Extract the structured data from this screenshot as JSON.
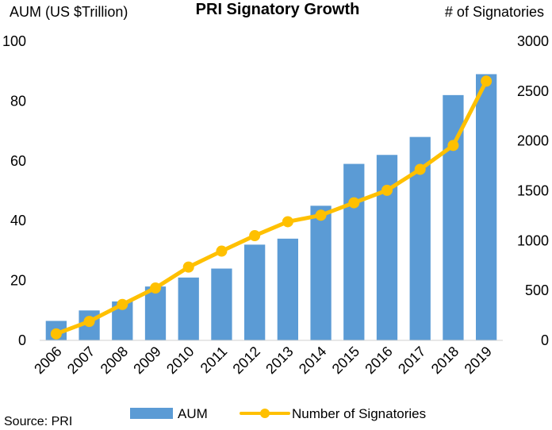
{
  "chart_data": {
    "type": "bar",
    "title": "PRI Signatory Growth",
    "ylabel_left": "AUM (US $Trillion)",
    "ylabel_right": "# of Signatories",
    "categories": [
      "2006",
      "2007",
      "2008",
      "2009",
      "2010",
      "2011",
      "2012",
      "2013",
      "2014",
      "2015",
      "2016",
      "2017",
      "2018",
      "2019"
    ],
    "series": [
      {
        "name": "AUM",
        "type": "bar",
        "axis": "left",
        "color": "#5b9bd5",
        "values": [
          6.5,
          10,
          13,
          18,
          21,
          24,
          32,
          34,
          45,
          59,
          62,
          68,
          82,
          89
        ]
      },
      {
        "name": "Number of Signatories",
        "type": "line",
        "axis": "right",
        "color": "#ffc000",
        "values": [
          65,
          190,
          360,
          525,
          735,
          895,
          1050,
          1190,
          1255,
          1380,
          1505,
          1715,
          1955,
          2600
        ]
      }
    ],
    "ylim_left": [
      0,
      100
    ],
    "yticks_left": [
      "0",
      "20",
      "40",
      "60",
      "80",
      "100"
    ],
    "ylim_right": [
      0,
      3000
    ],
    "yticks_right": [
      "0",
      "500",
      "1000",
      "1500",
      "2000",
      "2500",
      "3000"
    ],
    "grid": false,
    "legend_position": "bottom",
    "source": "Source: PRI"
  }
}
